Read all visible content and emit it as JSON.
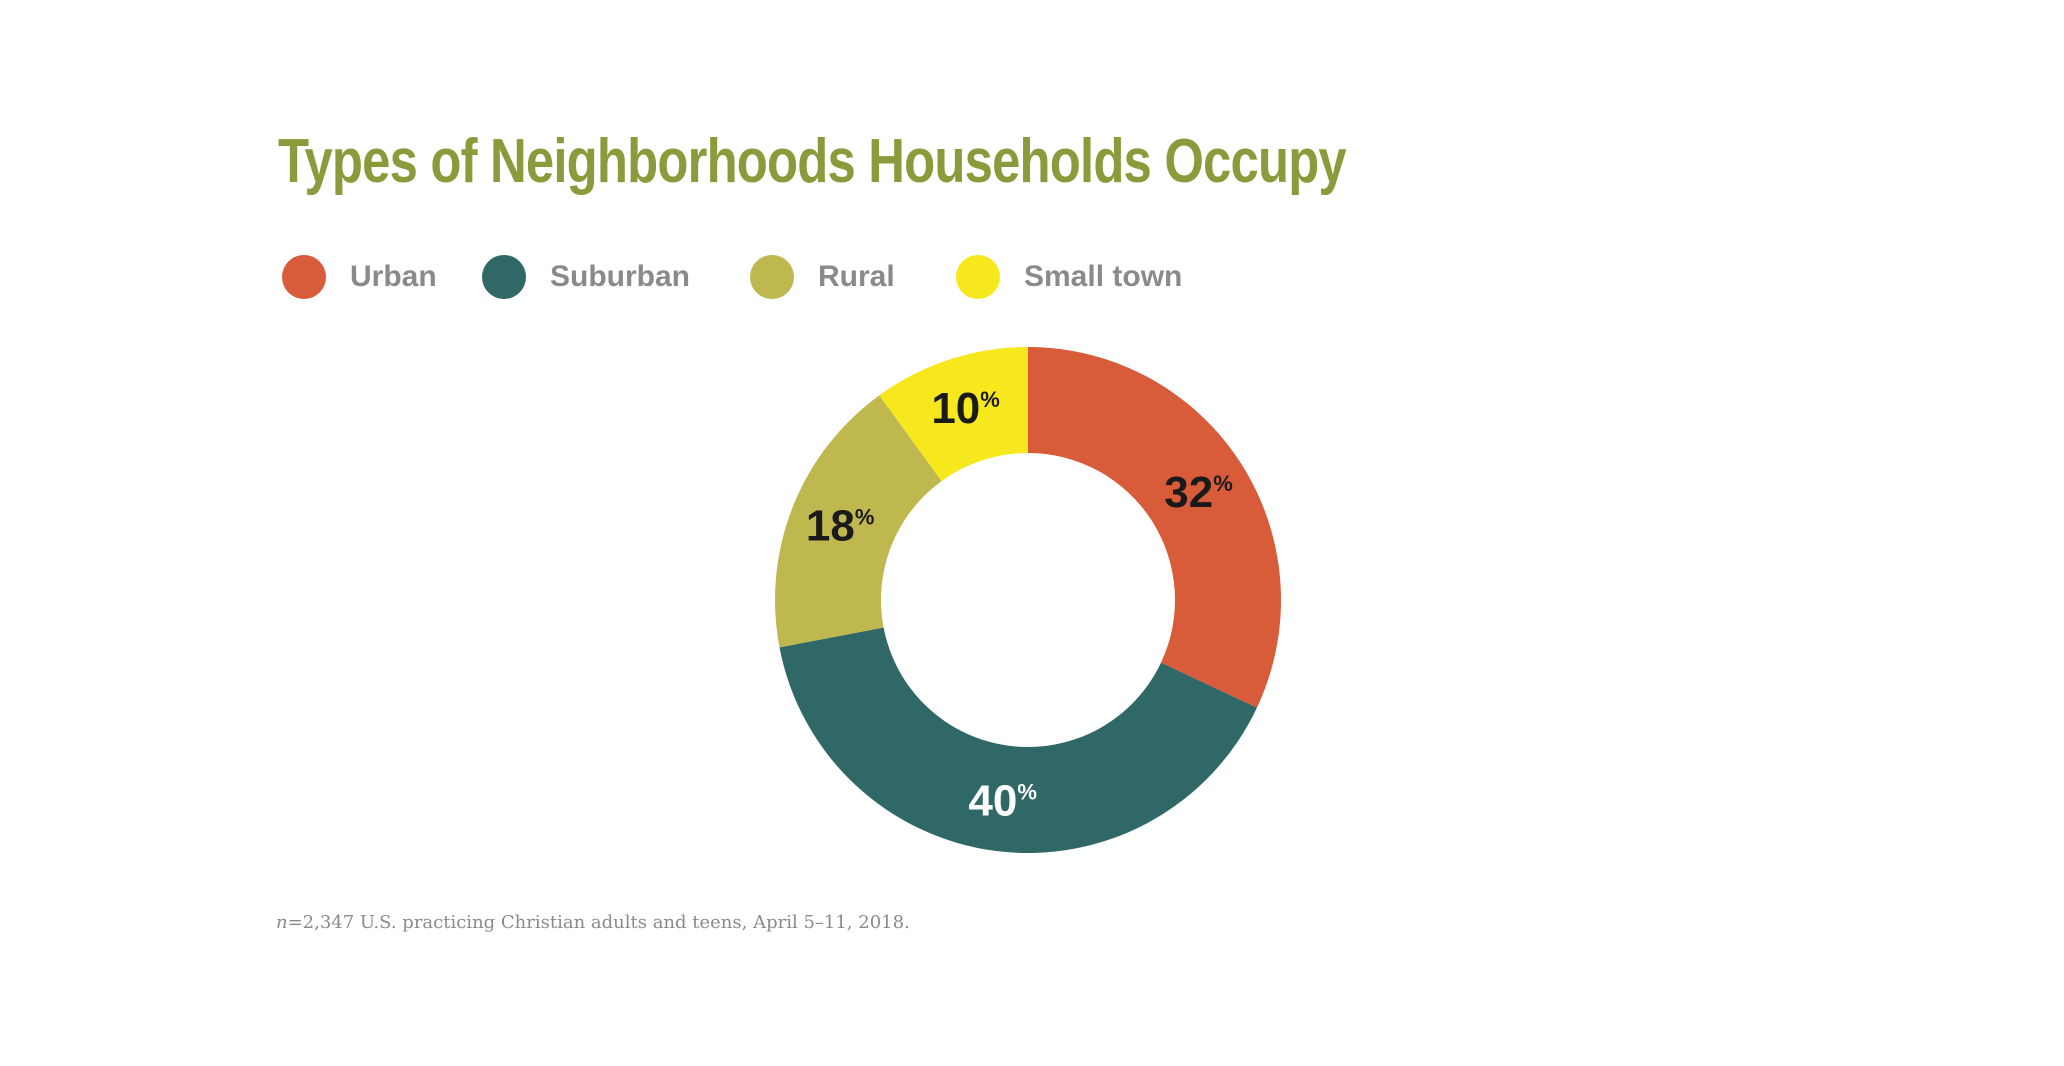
{
  "chart_data": {
    "type": "pie",
    "title": "Types of Neighborhoods Households Occupy",
    "categories": [
      "Urban",
      "Suburban",
      "Rural",
      "Small town"
    ],
    "values": [
      32,
      40,
      18,
      10
    ],
    "value_labels": [
      "32",
      "40",
      "18",
      "10"
    ],
    "percent_sign": "%",
    "colors": [
      "#d85b3a",
      "#2f6866",
      "#bfb84f",
      "#f6e81c"
    ],
    "label_colors": [
      "#1a1a1a",
      "#ffffff",
      "#1a1a1a",
      "#1a1a1a"
    ],
    "legend_placement": "top-left",
    "style": "donut"
  },
  "footnote": {
    "n_symbol": "n",
    "text": "=2,347 U.S. practicing Christian adults and teens, April 5–11, 2018."
  }
}
